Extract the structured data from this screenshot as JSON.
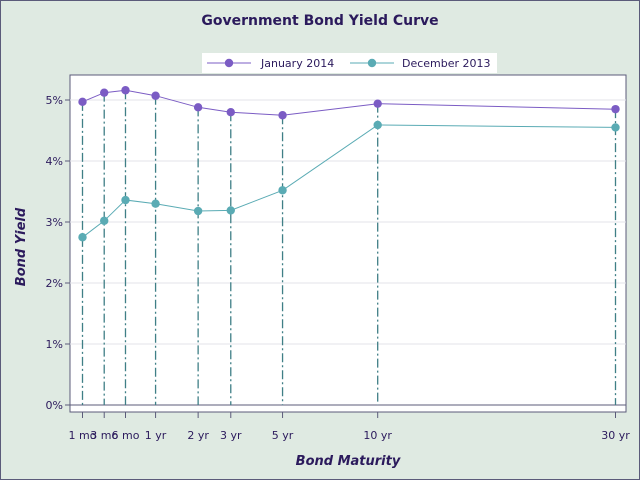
{
  "chart_data": {
    "type": "line",
    "title": "Government Bond Yield Curve",
    "xlabel": "Bond Maturity",
    "ylabel": "Bond Yield",
    "categories": [
      "1 mo",
      "3 mo",
      "6 mo",
      "1 yr",
      "2 yr",
      "3 yr",
      "5 yr",
      "10 yr",
      "30 yr"
    ],
    "x_years": [
      0.0833,
      0.25,
      0.5,
      1,
      2,
      3,
      5,
      10,
      30
    ],
    "ylim": [
      0,
      5.25
    ],
    "y_ticks": [
      "0%",
      "1%",
      "2%",
      "3%",
      "4%",
      "5%"
    ],
    "grid": true,
    "legend_position": "top",
    "series": [
      {
        "name": "January 2014",
        "color": "#7b5cc4",
        "values": [
          4.97,
          5.12,
          5.16,
          5.07,
          4.88,
          4.8,
          4.75,
          4.94,
          4.85
        ]
      },
      {
        "name": "December 2013",
        "color": "#5aabb4",
        "values": [
          2.75,
          3.02,
          3.36,
          3.3,
          3.18,
          3.19,
          3.52,
          4.59,
          4.55
        ]
      }
    ],
    "colors": {
      "background": "#dfeae2",
      "plot": "#ffffff",
      "text": "#2b1a5c",
      "droplines": "#3f7f86"
    }
  }
}
